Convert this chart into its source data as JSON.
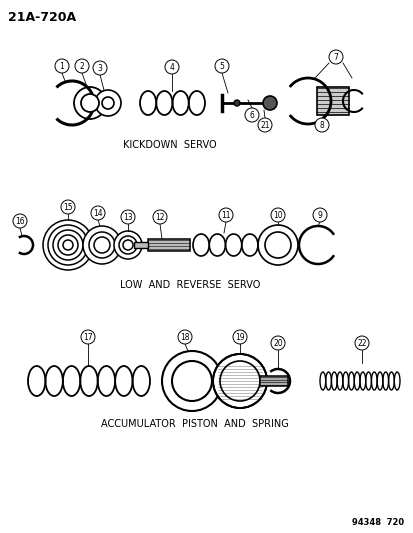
{
  "title": "21A-720A",
  "bg_color": "#ffffff",
  "text_color": "#000000",
  "line_color": "#000000",
  "section1_label": "KICKDOWN  SERVO",
  "section2_label": "LOW  AND  REVERSE  SERVO",
  "section3_label": "ACCUMULATOR  PISTON  AND  SPRING",
  "ref_label": "94348  720",
  "figsize": [
    4.14,
    5.33
  ],
  "dpi": 100
}
